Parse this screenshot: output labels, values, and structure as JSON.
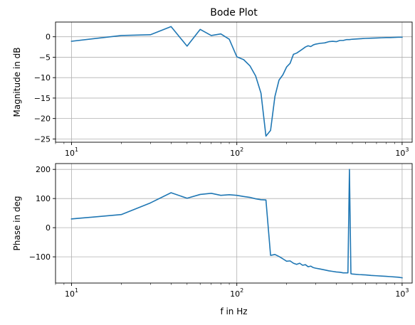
{
  "style": {
    "line_color": "#1f77b4",
    "grid_color": "#b0b0b0"
  },
  "chart_data": [
    {
      "type": "line",
      "title": "Bode Plot",
      "xlabel": "",
      "ylabel": "Magnitude in dB",
      "xscale": "log",
      "xlim": [
        8,
        1150
      ],
      "ylim": [
        -25.8,
        3.6
      ],
      "grid": true,
      "x_tick_labels": [
        {
          "value": 10,
          "base": "10",
          "exp": "1"
        },
        {
          "value": 100,
          "base": "10",
          "exp": "2"
        },
        {
          "value": 1000,
          "base": "10",
          "exp": "3"
        }
      ],
      "y_ticks": [
        0,
        -5,
        -10,
        -15,
        -20,
        -25
      ],
      "y_tick_labels": [
        "0",
        "−5",
        "−10",
        "−15",
        "−20",
        "−25"
      ],
      "series": [
        {
          "x": [
            10,
            20,
            30,
            40,
            50,
            60,
            70,
            80,
            90,
            100,
            110,
            120,
            130,
            140,
            150,
            160,
            170,
            180,
            190,
            200,
            210,
            220,
            230,
            240,
            250,
            260,
            270,
            280,
            290,
            300,
            320,
            340,
            360,
            380,
            400,
            420,
            440,
            460,
            480,
            500,
            550,
            600,
            650,
            700,
            750,
            800,
            850,
            900,
            950,
            1000
          ],
          "y": [
            -1.1,
            0.3,
            0.5,
            2.5,
            -2.3,
            1.8,
            0.3,
            0.7,
            -0.6,
            -4.9,
            -5.6,
            -7.1,
            -9.6,
            -13.8,
            -24.3,
            -22.9,
            -14.6,
            -10.6,
            -9.3,
            -7.4,
            -6.5,
            -4.3,
            -4.0,
            -3.5,
            -3.0,
            -2.5,
            -2.2,
            -2.4,
            -2.0,
            -1.8,
            -1.6,
            -1.5,
            -1.2,
            -1.1,
            -1.2,
            -0.9,
            -0.9,
            -0.7,
            -0.7,
            -0.6,
            -0.5,
            -0.4,
            -0.35,
            -0.3,
            -0.25,
            -0.2,
            -0.2,
            -0.15,
            -0.1,
            -0.1
          ]
        }
      ]
    },
    {
      "type": "line",
      "title": "",
      "xlabel": "f in Hz",
      "ylabel": "Phase in deg",
      "xscale": "log",
      "xlim": [
        8,
        1150
      ],
      "ylim": [
        -190,
        220
      ],
      "grid": true,
      "x_tick_labels": [
        {
          "value": 10,
          "base": "10",
          "exp": "1"
        },
        {
          "value": 100,
          "base": "10",
          "exp": "2"
        },
        {
          "value": 1000,
          "base": "10",
          "exp": "3"
        }
      ],
      "y_ticks": [
        200,
        100,
        0,
        -100
      ],
      "y_tick_labels": [
        "200",
        "100",
        "0",
        "−100"
      ],
      "series": [
        {
          "x": [
            10,
            20,
            30,
            40,
            50,
            60,
            70,
            80,
            90,
            100,
            110,
            120,
            130,
            140,
            150,
            160,
            170,
            180,
            190,
            200,
            210,
            220,
            230,
            240,
            250,
            260,
            270,
            280,
            290,
            300,
            320,
            340,
            360,
            380,
            400,
            420,
            440,
            460,
            470,
            480,
            490,
            500,
            550,
            600,
            650,
            700,
            750,
            800,
            850,
            900,
            950,
            1000
          ],
          "y": [
            30,
            45,
            85,
            120,
            101,
            114,
            118,
            111,
            113,
            111,
            107,
            104,
            99,
            96,
            95,
            -95,
            -92,
            -99,
            -107,
            -115,
            -114,
            -122,
            -126,
            -122,
            -129,
            -127,
            -134,
            -132,
            -137,
            -139,
            -142,
            -145,
            -148,
            -150,
            -152,
            -153,
            -155,
            -155,
            -155,
            200,
            -158,
            -159,
            -161,
            -162,
            -164,
            -165,
            -166,
            -167,
            -168,
            -169,
            -170,
            -172
          ]
        }
      ]
    }
  ]
}
